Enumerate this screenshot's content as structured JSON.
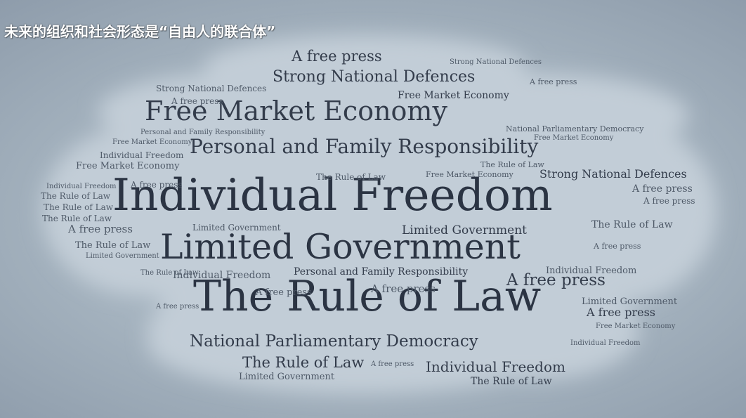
{
  "slide": {
    "title": "未来的组织和社会形态是“自由人的联合体”"
  },
  "word_cloud": {
    "words": [
      "A free press",
      "Strong National Defences",
      "Free Market Economy",
      "Personal and Family Responsibility",
      "Individual Freedom",
      "Limited Government",
      "The Rule of Law",
      "National Parliamentary Democracy"
    ]
  },
  "colors": {
    "screen_background": "#a5b3bf",
    "cloud_fill": "#c0ccd6",
    "word_text": "#333c4b",
    "title_text": "#ffffff"
  }
}
